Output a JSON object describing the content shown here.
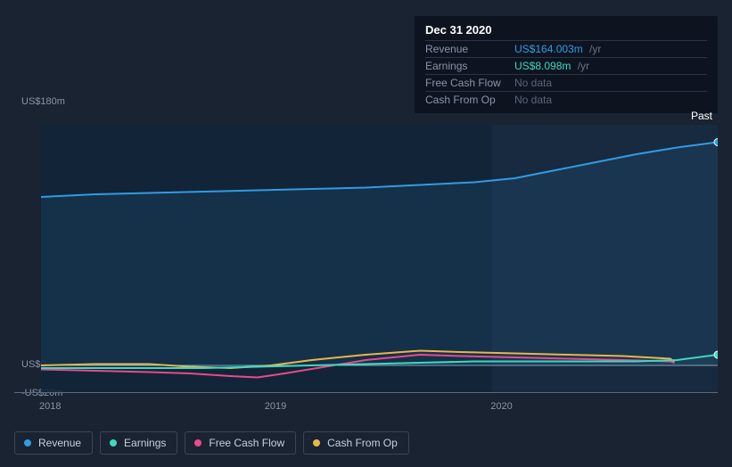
{
  "tooltip": {
    "date": "Dec 31 2020",
    "rows": [
      {
        "label": "Revenue",
        "value": "US$164.003m",
        "unit": "/yr",
        "color": "#2f9ce4"
      },
      {
        "label": "Earnings",
        "value": "US$8.098m",
        "unit": "/yr",
        "color": "#3dd9c1"
      },
      {
        "label": "Free Cash Flow",
        "value": "No data",
        "unit": "",
        "color": "nodata"
      },
      {
        "label": "Cash From Op",
        "value": "No data",
        "unit": "",
        "color": "nodata"
      }
    ]
  },
  "chart": {
    "type": "area-line",
    "background_past": "rgba(18,36,58,0.85)",
    "background_future_overlay": "rgba(30,48,72,0.5)",
    "y_axis": {
      "ticks": [
        {
          "label": "US$180m",
          "value": 180
        },
        {
          "label": "US$0",
          "value": 0
        },
        {
          "label": "-US$20m",
          "value": -20
        }
      ],
      "min": -20,
      "max": 180,
      "zero_line_color": "#bfd2e8",
      "label_fontsize": 11
    },
    "x_axis": {
      "ticks": [
        {
          "label": "2018",
          "frac": 0.0
        },
        {
          "label": "2019",
          "frac": 0.333
        },
        {
          "label": "2020",
          "frac": 0.667
        }
      ],
      "past_divider_frac": 0.666,
      "label_fontsize": 11
    },
    "past_label": "Past",
    "series": [
      {
        "name": "Revenue",
        "color": "#2f9ce4",
        "fill": "rgba(47,156,228,0.10)",
        "line_width": 2,
        "points": [
          {
            "x": 0.0,
            "y": 126
          },
          {
            "x": 0.08,
            "y": 128
          },
          {
            "x": 0.16,
            "y": 129
          },
          {
            "x": 0.24,
            "y": 130
          },
          {
            "x": 0.32,
            "y": 131
          },
          {
            "x": 0.4,
            "y": 132
          },
          {
            "x": 0.48,
            "y": 133
          },
          {
            "x": 0.56,
            "y": 135
          },
          {
            "x": 0.64,
            "y": 137
          },
          {
            "x": 0.7,
            "y": 140
          },
          {
            "x": 0.76,
            "y": 146
          },
          {
            "x": 0.82,
            "y": 152
          },
          {
            "x": 0.88,
            "y": 158
          },
          {
            "x": 0.94,
            "y": 163
          },
          {
            "x": 1.0,
            "y": 167
          }
        ]
      },
      {
        "name": "Cash From Op",
        "color": "#e8b64a",
        "fill": "none",
        "line_width": 2,
        "points": [
          {
            "x": 0.0,
            "y": 0
          },
          {
            "x": 0.08,
            "y": 1
          },
          {
            "x": 0.16,
            "y": 1
          },
          {
            "x": 0.22,
            "y": -1
          },
          {
            "x": 0.28,
            "y": -2
          },
          {
            "x": 0.34,
            "y": 0
          },
          {
            "x": 0.4,
            "y": 4
          },
          {
            "x": 0.48,
            "y": 8
          },
          {
            "x": 0.56,
            "y": 11
          },
          {
            "x": 0.62,
            "y": 10
          },
          {
            "x": 0.7,
            "y": 9
          },
          {
            "x": 0.78,
            "y": 8
          },
          {
            "x": 0.86,
            "y": 7
          },
          {
            "x": 0.93,
            "y": 5
          },
          {
            "x": 0.935,
            "y": 3
          }
        ]
      },
      {
        "name": "Free Cash Flow",
        "color": "#e84a8a",
        "fill": "none",
        "line_width": 2,
        "points": [
          {
            "x": 0.0,
            "y": -3
          },
          {
            "x": 0.08,
            "y": -4
          },
          {
            "x": 0.16,
            "y": -5
          },
          {
            "x": 0.22,
            "y": -6
          },
          {
            "x": 0.28,
            "y": -8
          },
          {
            "x": 0.32,
            "y": -9
          },
          {
            "x": 0.36,
            "y": -6
          },
          {
            "x": 0.42,
            "y": -1
          },
          {
            "x": 0.48,
            "y": 4
          },
          {
            "x": 0.56,
            "y": 8
          },
          {
            "x": 0.62,
            "y": 7
          },
          {
            "x": 0.7,
            "y": 6
          },
          {
            "x": 0.78,
            "y": 5
          },
          {
            "x": 0.86,
            "y": 4
          },
          {
            "x": 0.93,
            "y": 3
          },
          {
            "x": 0.935,
            "y": 2
          }
        ]
      },
      {
        "name": "Earnings",
        "color": "#3dd9c1",
        "fill": "rgba(61,217,193,0.06)",
        "line_width": 2,
        "points": [
          {
            "x": 0.0,
            "y": -2
          },
          {
            "x": 0.08,
            "y": -2
          },
          {
            "x": 0.16,
            "y": -2
          },
          {
            "x": 0.24,
            "y": -2
          },
          {
            "x": 0.32,
            "y": -1
          },
          {
            "x": 0.4,
            "y": 0
          },
          {
            "x": 0.48,
            "y": 1
          },
          {
            "x": 0.56,
            "y": 2
          },
          {
            "x": 0.64,
            "y": 3
          },
          {
            "x": 0.72,
            "y": 3
          },
          {
            "x": 0.8,
            "y": 3
          },
          {
            "x": 0.88,
            "y": 3
          },
          {
            "x": 0.94,
            "y": 4
          },
          {
            "x": 1.0,
            "y": 8
          }
        ]
      }
    ],
    "end_markers": [
      {
        "x": 1.0,
        "y": 167,
        "color": "#2f9ce4"
      },
      {
        "x": 1.0,
        "y": 8,
        "color": "#3dd9c1"
      }
    ]
  },
  "legend": [
    {
      "label": "Revenue",
      "color": "#2f9ce4"
    },
    {
      "label": "Earnings",
      "color": "#3dd9c1"
    },
    {
      "label": "Free Cash Flow",
      "color": "#e84a8a"
    },
    {
      "label": "Cash From Op",
      "color": "#e8b64a"
    }
  ]
}
